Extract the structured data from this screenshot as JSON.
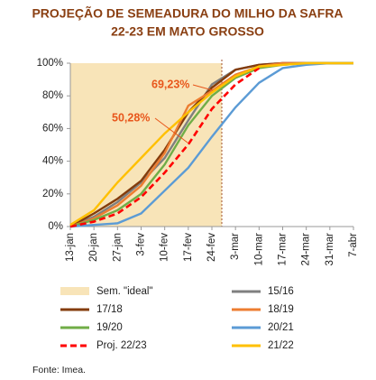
{
  "chart_data": {
    "type": "line",
    "title": [
      "PROJEÇÃO DE SEMEADURA DO MILHO DA SAFRA",
      "22-23 EM MATO GROSSO"
    ],
    "categories": [
      "13-jan",
      "20-jan",
      "27-jan",
      "3-fev",
      "10-fev",
      "17-fev",
      "24-fev",
      "3-mar",
      "10-mar",
      "17-mar",
      "24-mar",
      "31-mar",
      "7-abr"
    ],
    "ylim": [
      0,
      100
    ],
    "yticks": [
      {
        "value": 0,
        "label": "0%"
      },
      {
        "value": 20,
        "label": "20%"
      },
      {
        "value": 40,
        "label": "40%"
      },
      {
        "value": 60,
        "label": "60%"
      },
      {
        "value": 80,
        "label": "80%"
      },
      {
        "value": 100,
        "label": "100%"
      }
    ],
    "shaded_region_name": "Sem. \"ideal\"",
    "shaded_color": "#f8e4b8",
    "series": [
      {
        "name": "15/16",
        "color": "#7f7f7f",
        "values": [
          0,
          6,
          15,
          27,
          42,
          65,
          87,
          96,
          99,
          100,
          100,
          100,
          100
        ]
      },
      {
        "name": "17/18",
        "color": "#843c0c",
        "values": [
          0,
          8,
          17,
          28,
          47,
          70,
          85,
          96,
          99,
          100,
          100,
          100,
          100
        ]
      },
      {
        "name": "18/19",
        "color": "#ed7d31",
        "values": [
          0,
          5,
          13,
          25,
          45,
          74,
          83,
          93,
          98,
          100,
          100,
          100,
          100
        ]
      },
      {
        "name": "19/20",
        "color": "#70ad47",
        "values": [
          0,
          4,
          10,
          20,
          38,
          62,
          80,
          91,
          97,
          99,
          100,
          100,
          100
        ]
      },
      {
        "name": "20/21",
        "color": "#5b9bd5",
        "values": [
          0,
          1,
          2,
          8,
          22,
          36,
          55,
          73,
          88,
          97,
          99,
          100,
          100
        ]
      },
      {
        "name": "Proj. 22/23",
        "color": "#ff0000",
        "dashed": true,
        "values": [
          0,
          3,
          8,
          18,
          33,
          50.28,
          72,
          87,
          97,
          null,
          null,
          null,
          null
        ]
      },
      {
        "name": "21/22",
        "color": "#ffc000",
        "values": [
          1,
          10,
          27,
          42,
          57,
          70,
          82,
          92,
          98,
          99,
          100,
          100,
          100
        ]
      }
    ],
    "annotations": [
      "69,23%",
      "50,28%"
    ],
    "source": "Fonte: Imea."
  }
}
